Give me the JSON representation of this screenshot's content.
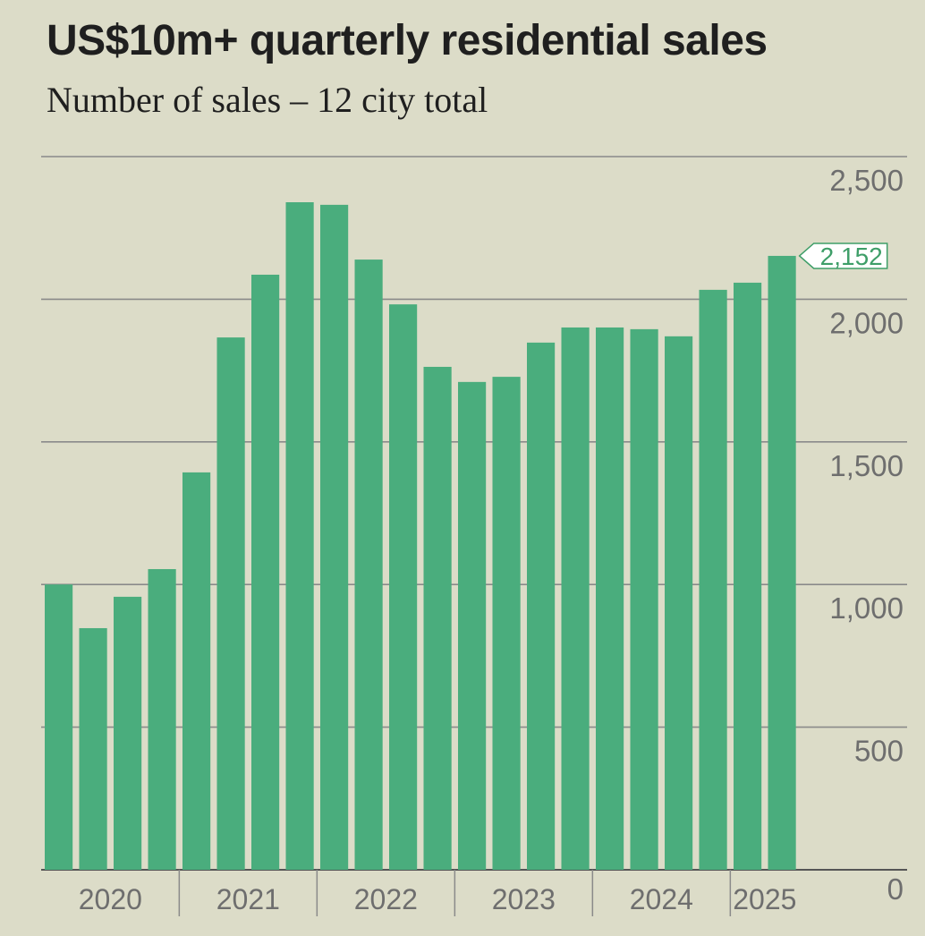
{
  "title": "US$10m+ quarterly residential sales",
  "subtitle": "Number of sales – 12 city total",
  "colors": {
    "bar": "#4aad7d",
    "background": "#dcdcc8",
    "grid": "#8a8a8a",
    "text": "#6e6e6e",
    "callout": "#3e9e68"
  },
  "chart_data": {
    "type": "bar",
    "title": "US$10m+ quarterly residential sales",
    "subtitle": "Number of sales – 12 city total",
    "xlabel": "",
    "ylabel": "",
    "ylim": [
      0,
      2500
    ],
    "yticks": [
      0,
      500,
      1000,
      1500,
      2000,
      2500
    ],
    "ytick_labels": [
      "0",
      "500",
      "1,000",
      "1,500",
      "2,000",
      "2,500"
    ],
    "y_axis_position": "right",
    "grid": true,
    "categories": [
      "Q1 2020",
      "Q2 2020",
      "Q3 2020",
      "Q4 2020",
      "Q1 2021",
      "Q2 2021",
      "Q3 2021",
      "Q4 2021",
      "Q1 2022",
      "Q2 2022",
      "Q3 2022",
      "Q4 2022",
      "Q1 2023",
      "Q2 2023",
      "Q3 2023",
      "Q4 2023",
      "Q1 2024",
      "Q2 2024",
      "Q3 2024",
      "Q4 2024",
      "Q1 2025",
      "Q2 2025"
    ],
    "values": [
      1000,
      847,
      957,
      1054,
      1393,
      1866,
      2086,
      2340,
      2331,
      2139,
      1982,
      1763,
      1710,
      1728,
      1848,
      1901,
      1901,
      1895,
      1870,
      2033,
      2058,
      2152
    ],
    "year_groups": [
      {
        "label": "2020",
        "quarters": 4
      },
      {
        "label": "2021",
        "quarters": 4
      },
      {
        "label": "2022",
        "quarters": 4
      },
      {
        "label": "2023",
        "quarters": 4
      },
      {
        "label": "2024",
        "quarters": 4
      },
      {
        "label": "2025",
        "quarters": 2
      }
    ],
    "annotations": [
      {
        "category": "Q2 2025",
        "text": "2,152"
      }
    ]
  }
}
